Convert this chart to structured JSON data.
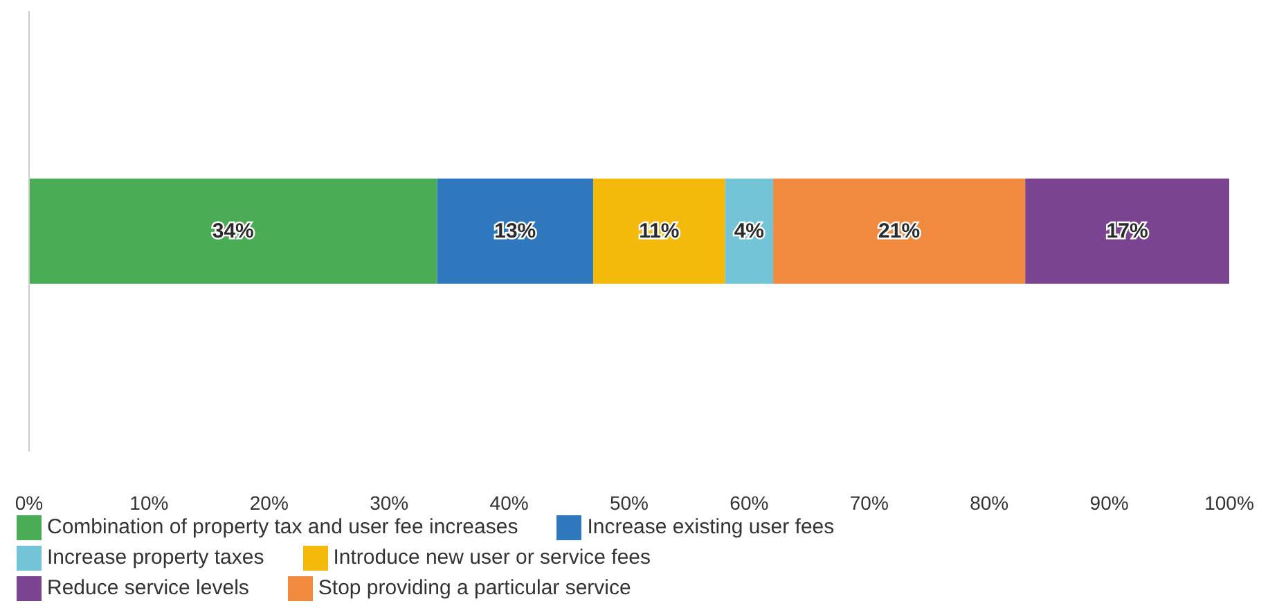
{
  "chart_data": {
    "type": "bar",
    "orientation": "horizontal",
    "stacked": true,
    "categories": [
      null
    ],
    "series": [
      {
        "name": "Combination of property tax and user fee increases",
        "color": "#4aac54",
        "values": [
          34
        ],
        "value_labels": [
          "34%"
        ]
      },
      {
        "name": "Increase existing user fees",
        "color": "#2f78bd",
        "values": [
          13
        ],
        "value_labels": [
          "13%"
        ]
      },
      {
        "name": "Introduce new user or service fees",
        "color": "#f3ba0c",
        "values": [
          11
        ],
        "value_labels": [
          "11%"
        ]
      },
      {
        "name": "Increase property taxes",
        "color": "#72c4d6",
        "values": [
          4
        ],
        "value_labels": [
          "4%"
        ]
      },
      {
        "name": "Stop providing a particular service",
        "color": "#f08a3e",
        "values": [
          21
        ],
        "value_labels": [
          "21%"
        ]
      },
      {
        "name": "Reduce service levels",
        "color": "#7a4490",
        "values": [
          17
        ],
        "value_labels": [
          "17%"
        ]
      }
    ],
    "xlim": [
      0,
      100
    ],
    "xticks": [
      {
        "value": 0,
        "label": "0%"
      },
      {
        "value": 10,
        "label": "10%"
      },
      {
        "value": 20,
        "label": "20%"
      },
      {
        "value": 30,
        "label": "30%"
      },
      {
        "value": 40,
        "label": "40%"
      },
      {
        "value": 50,
        "label": "50%"
      },
      {
        "value": 60,
        "label": "60%"
      },
      {
        "value": 70,
        "label": "70%"
      },
      {
        "value": 80,
        "label": "80%"
      },
      {
        "value": 90,
        "label": "90%"
      },
      {
        "value": 100,
        "label": "100%"
      }
    ],
    "legend": "bottom"
  }
}
